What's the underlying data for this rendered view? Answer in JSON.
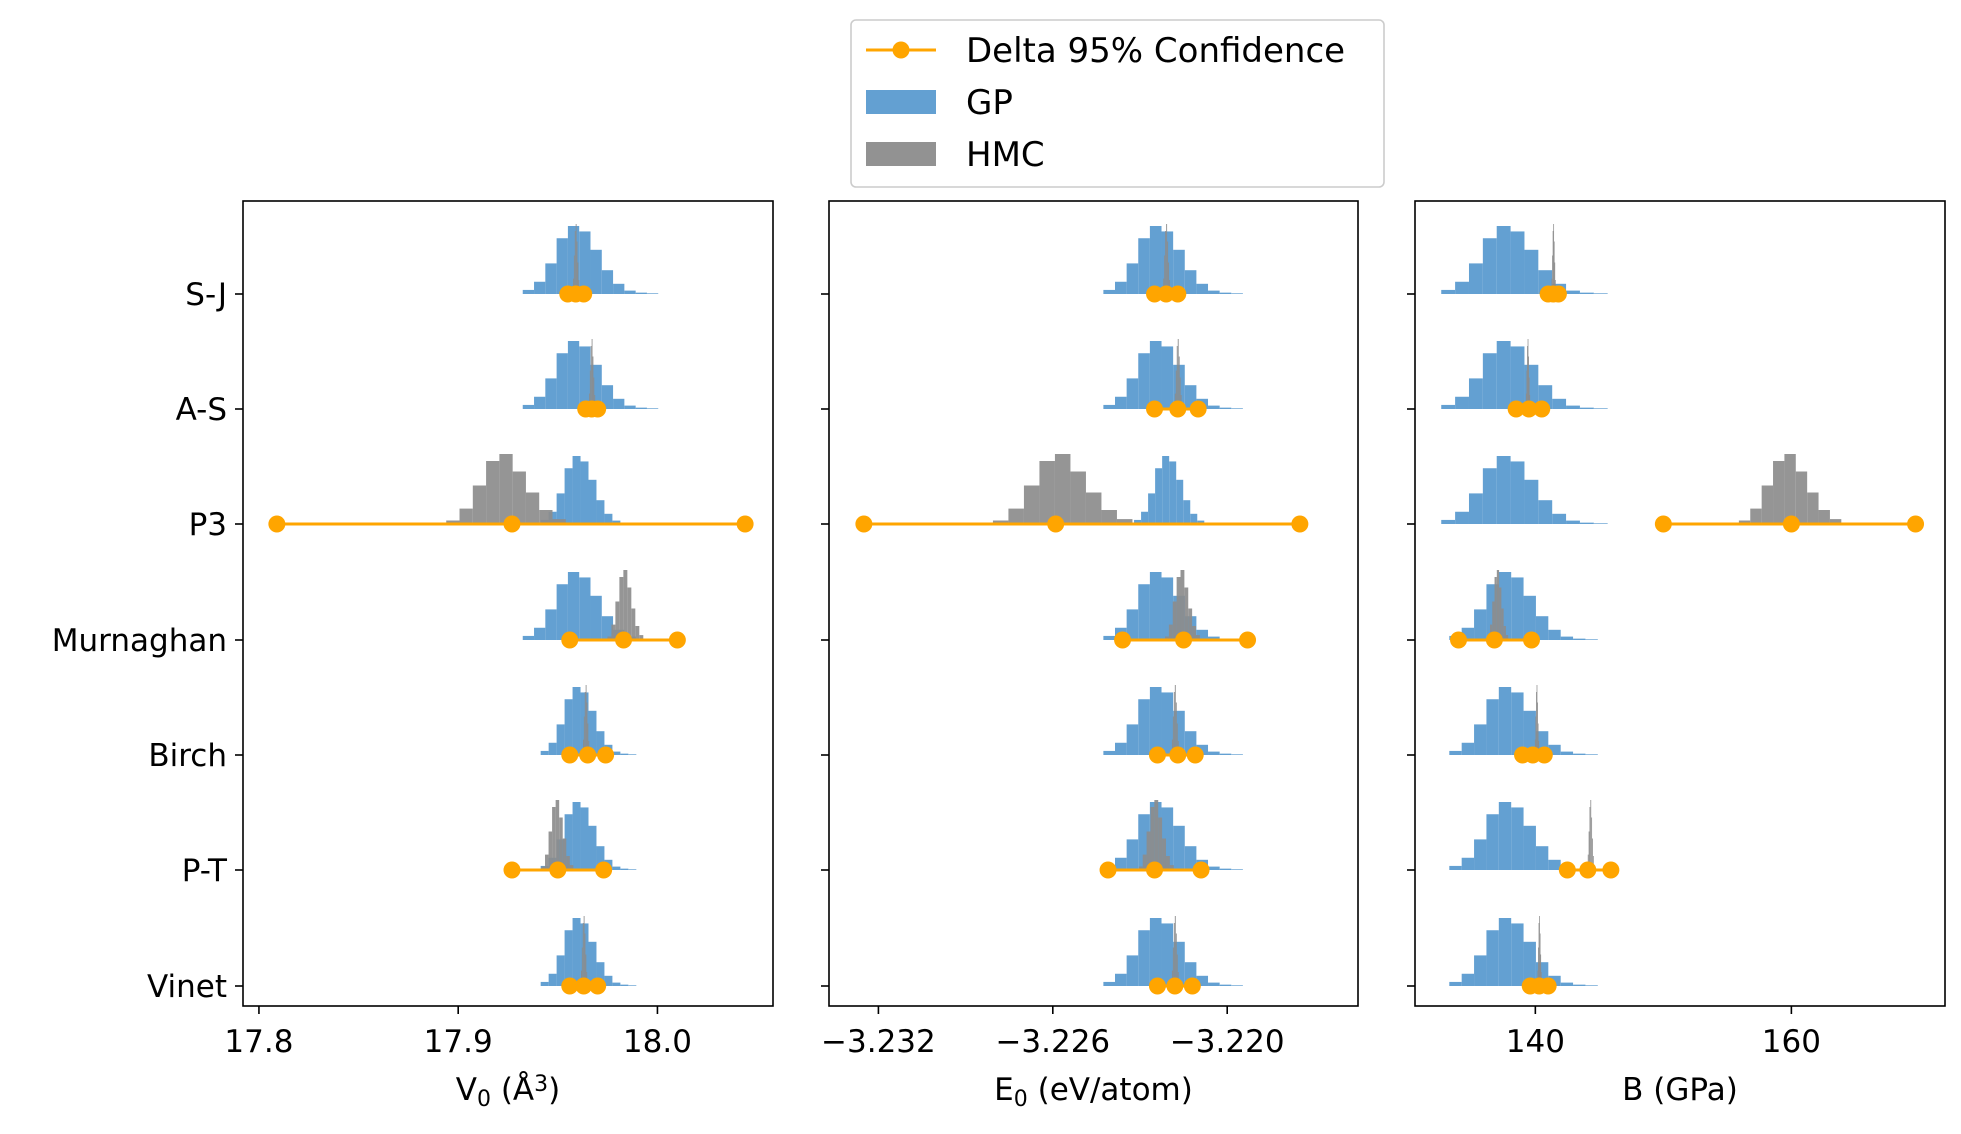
{
  "chart_data": {
    "type": "histogram-interval",
    "categories": [
      "S-J",
      "A-S",
      "P3",
      "Murnaghan",
      "Birch",
      "P-T",
      "Vinet"
    ],
    "colors": {
      "gp": "#5b9bd0",
      "hmc": "#8c8c8c",
      "delta": "#ffa500"
    },
    "legend": {
      "placement": "top-center",
      "entries": [
        {
          "key": "delta",
          "label": "Delta 95% Confidence",
          "kind": "line-marker"
        },
        {
          "key": "gp",
          "label": "GP",
          "kind": "patch"
        },
        {
          "key": "hmc",
          "label": "HMC",
          "kind": "patch"
        }
      ]
    },
    "panels": [
      {
        "id": "V0",
        "xlabel_main": "V",
        "xlabel_sub": "0",
        "xlabel_rest": " (Å",
        "xlabel_sup": "3",
        "xlabel_end": ")",
        "xlim": [
          17.792,
          18.058
        ],
        "ticks": [
          17.8,
          17.9,
          18.0
        ],
        "tick_labels": [
          "17.8",
          "17.9",
          "18.0"
        ],
        "rows": [
          {
            "gp": {
              "center": 17.963,
              "width": 0.068
            },
            "hmc": {
              "center": 17.959,
              "width": 0.004
            },
            "delta": [
              17.955,
              17.959,
              17.963
            ]
          },
          {
            "gp": {
              "center": 17.963,
              "width": 0.068
            },
            "hmc": {
              "center": 17.967,
              "width": 0.004
            },
            "delta": [
              17.964,
              17.967,
              17.97
            ]
          },
          {
            "gp": {
              "center": 17.963,
              "width": 0.048
            },
            "hmc": {
              "center": 17.921,
              "width": 0.06
            },
            "delta": [
              17.809,
              17.927,
              18.044
            ]
          },
          {
            "gp": {
              "center": 17.963,
              "width": 0.068
            },
            "hmc": {
              "center": 17.983,
              "width": 0.018
            },
            "delta": [
              17.956,
              17.983,
              18.01
            ]
          },
          {
            "gp": {
              "center": 17.963,
              "width": 0.048
            },
            "hmc": {
              "center": 17.964,
              "width": 0.004
            },
            "delta": [
              17.956,
              17.965,
              17.974
            ]
          },
          {
            "gp": {
              "center": 17.963,
              "width": 0.048
            },
            "hmc": {
              "center": 17.949,
              "width": 0.016
            },
            "delta": [
              17.927,
              17.95,
              17.973
            ]
          },
          {
            "gp": {
              "center": 17.963,
              "width": 0.048
            },
            "hmc": {
              "center": 17.963,
              "width": 0.004
            },
            "delta": [
              17.956,
              17.963,
              17.97
            ]
          }
        ]
      },
      {
        "id": "E0",
        "xlabel_main": "E",
        "xlabel_sub": "0",
        "xlabel_rest": " (eV/atom)",
        "xlabel_sup": "",
        "xlabel_end": "",
        "xlim": [
          -3.2337,
          -3.2155
        ],
        "ticks": [
          -3.232,
          -3.226,
          -3.22
        ],
        "tick_labels": [
          "−3.232",
          "−3.226",
          "−3.220"
        ],
        "rows": [
          {
            "gp": {
              "center": -3.2221,
              "width": 0.0048
            },
            "hmc": {
              "center": -3.2221,
              "width": 0.0003
            },
            "delta": [
              -3.2225,
              -3.2221,
              -3.2217
            ]
          },
          {
            "gp": {
              "center": -3.2221,
              "width": 0.0048
            },
            "hmc": {
              "center": -3.2217,
              "width": 0.0003
            },
            "delta": [
              -3.2225,
              -3.2217,
              -3.221
            ]
          },
          {
            "gp": {
              "center": -3.2219,
              "width": 0.0029
            },
            "hmc": {
              "center": -3.2259,
              "width": 0.0048
            },
            "delta": [
              -3.2325,
              -3.2259,
              -3.2175
            ]
          },
          {
            "gp": {
              "center": -3.2221,
              "width": 0.0048
            },
            "hmc": {
              "center": -3.2216,
              "width": 0.0012
            },
            "delta": [
              -3.2236,
              -3.2215,
              -3.2193
            ]
          },
          {
            "gp": {
              "center": -3.2221,
              "width": 0.0048
            },
            "hmc": {
              "center": -3.2218,
              "width": 0.0003
            },
            "delta": [
              -3.2224,
              -3.2217,
              -3.2211
            ]
          },
          {
            "gp": {
              "center": -3.2221,
              "width": 0.0048
            },
            "hmc": {
              "center": -3.2225,
              "width": 0.0012
            },
            "delta": [
              -3.2241,
              -3.2225,
              -3.2209
            ]
          },
          {
            "gp": {
              "center": -3.2221,
              "width": 0.0048
            },
            "hmc": {
              "center": -3.2218,
              "width": 0.0003
            },
            "delta": [
              -3.2224,
              -3.2218,
              -3.2212
            ]
          }
        ]
      },
      {
        "id": "B",
        "xlabel_main": "B (GPa)",
        "xlabel_sub": "",
        "xlabel_rest": "",
        "xlabel_sup": "",
        "xlabel_end": "",
        "xlim": [
          130.6,
          172.0
        ],
        "ticks": [
          140,
          160
        ],
        "tick_labels": [
          "140",
          "160"
        ],
        "rows": [
          {
            "gp": {
              "center": 138.5,
              "width": 13.0
            },
            "hmc": {
              "center": 141.4,
              "width": 0.4
            },
            "delta": [
              141.0,
              141.4,
              141.8
            ]
          },
          {
            "gp": {
              "center": 138.5,
              "width": 13.0
            },
            "hmc": {
              "center": 139.4,
              "width": 0.4
            },
            "delta": [
              138.5,
              139.5,
              140.5
            ]
          },
          {
            "gp": {
              "center": 138.5,
              "width": 13.0
            },
            "hmc": {
              "center": 159.5,
              "width": 8.0
            },
            "delta": [
              150.0,
              160.0,
              169.7
            ]
          },
          {
            "gp": {
              "center": 138.5,
              "width": 11.6
            },
            "hmc": {
              "center": 137.0,
              "width": 1.6
            },
            "delta": [
              134.0,
              136.8,
              139.7
            ]
          },
          {
            "gp": {
              "center": 138.5,
              "width": 11.6
            },
            "hmc": {
              "center": 140.1,
              "width": 0.4
            },
            "delta": [
              139.0,
              139.8,
              140.7
            ]
          },
          {
            "gp": {
              "center": 138.5,
              "width": 11.6
            },
            "hmc": {
              "center": 144.3,
              "width": 0.6
            },
            "delta": [
              142.5,
              144.1,
              145.9
            ]
          },
          {
            "gp": {
              "center": 138.5,
              "width": 11.6
            },
            "hmc": {
              "center": 140.3,
              "width": 0.4
            },
            "delta": [
              139.6,
              140.3,
              141.0
            ]
          }
        ]
      }
    ]
  }
}
